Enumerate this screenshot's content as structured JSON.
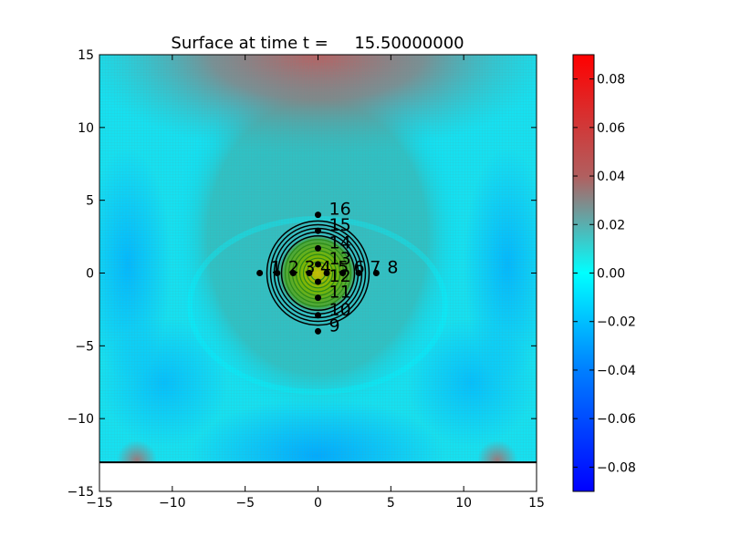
{
  "chart_data": {
    "type": "heatmap",
    "title": "Surface at time t =     15.50000000",
    "xlim": [
      -15,
      15
    ],
    "ylim": [
      -15,
      15
    ],
    "x_ticks": [
      -15,
      -10,
      -5,
      0,
      5,
      10,
      15
    ],
    "y_ticks": [
      -15,
      -10,
      -5,
      0,
      5,
      10,
      15
    ],
    "x_tick_labels": [
      "−15",
      "−10",
      "−5",
      "0",
      "5",
      "10",
      "15"
    ],
    "y_tick_labels": [
      "−15",
      "−10",
      "−5",
      "0",
      "5",
      "10",
      "15"
    ],
    "domain_bottom_y": -13,
    "colorbar": {
      "range": [
        -0.09,
        0.09
      ],
      "ticks": [
        0.08,
        0.06,
        0.04,
        0.02,
        0.0,
        -0.02,
        -0.04,
        -0.06,
        -0.08
      ],
      "tick_labels": [
        "0.08",
        "0.06",
        "0.04",
        "0.02",
        "0.00",
        "−0.02",
        "−0.04",
        "−0.06",
        "−0.08"
      ],
      "colors": [
        "#ff0000",
        "#c05a5a",
        "#4ba8a8",
        "#00ffff",
        "#0064ff",
        "#0000ff"
      ]
    },
    "contour_center": [
      0,
      0
    ],
    "gauges": [
      {
        "label": "1",
        "x": -4,
        "y": 0
      },
      {
        "label": "2",
        "x": -2.8,
        "y": 0
      },
      {
        "label": "3",
        "x": -1.7,
        "y": 0
      },
      {
        "label": "4",
        "x": -0.6,
        "y": 0
      },
      {
        "label": "5",
        "x": 0.6,
        "y": 0
      },
      {
        "label": "6",
        "x": 1.7,
        "y": 0
      },
      {
        "label": "7",
        "x": 2.8,
        "y": 0
      },
      {
        "label": "8",
        "x": 4,
        "y": 0
      },
      {
        "label": "9",
        "x": 0,
        "y": -4
      },
      {
        "label": "10",
        "x": 0,
        "y": -2.9
      },
      {
        "label": "11",
        "x": 0,
        "y": -1.7
      },
      {
        "label": "12",
        "x": 0,
        "y": -0.6
      },
      {
        "label": "13",
        "x": 0,
        "y": 0.6
      },
      {
        "label": "14",
        "x": 0,
        "y": 1.7
      },
      {
        "label": "15",
        "x": 0,
        "y": 2.9
      },
      {
        "label": "16",
        "x": 0,
        "y": 4
      }
    ]
  }
}
